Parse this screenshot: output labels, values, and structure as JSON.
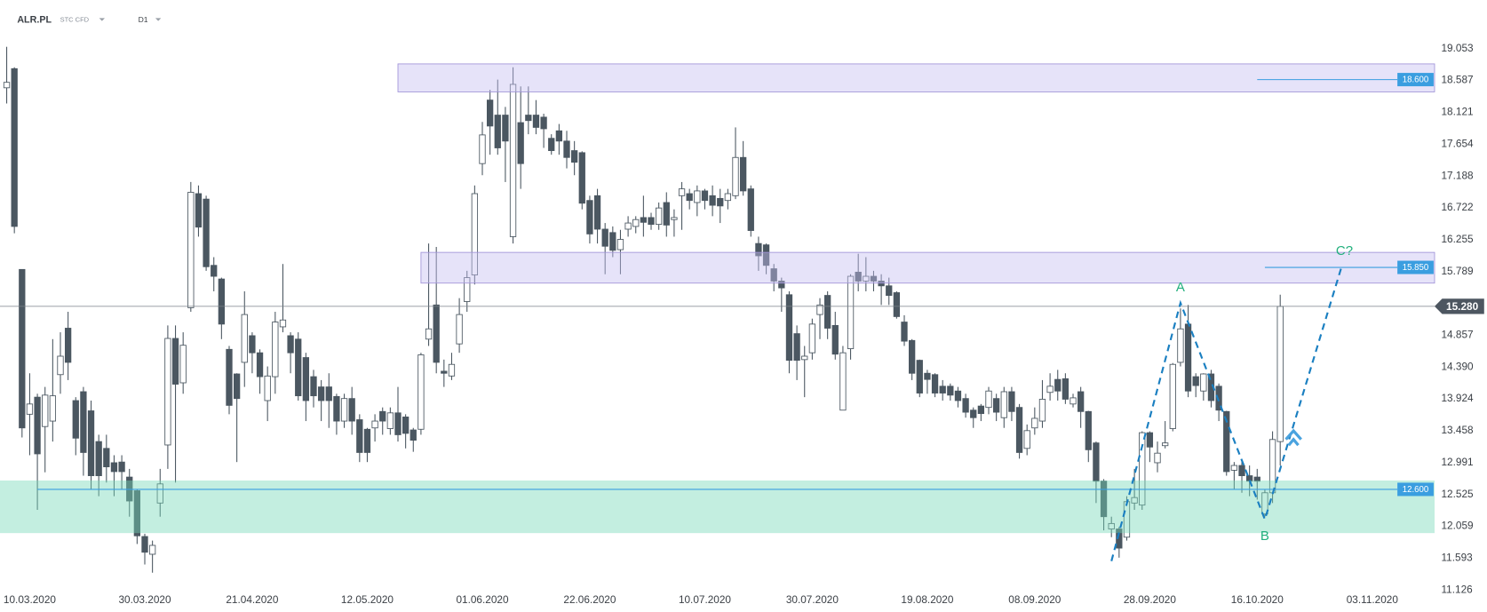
{
  "header": {
    "symbol": "ALR.PL",
    "market": "STC CFD",
    "interval": "D1"
  },
  "chart_data": {
    "type": "candlestick",
    "categories": [
      null,
      null,
      null,
      "10.03.2020",
      null,
      null,
      null,
      null,
      null,
      null,
      null,
      null,
      null,
      null,
      null,
      null,
      null,
      null,
      "30.03.2020",
      null,
      null,
      null,
      null,
      null,
      null,
      null,
      null,
      null,
      null,
      null,
      null,
      null,
      "21.04.2020",
      null,
      null,
      null,
      null,
      null,
      null,
      null,
      null,
      null,
      null,
      null,
      null,
      null,
      null,
      "12.05.2020",
      null,
      null,
      null,
      null,
      null,
      null,
      null,
      null,
      null,
      null,
      null,
      null,
      null,
      null,
      "01.06.2020",
      null,
      null,
      null,
      null,
      null,
      null,
      null,
      null,
      null,
      null,
      null,
      null,
      null,
      "22.06.2020",
      null,
      null,
      null,
      null,
      null,
      null,
      null,
      null,
      null,
      null,
      null,
      null,
      null,
      null,
      "10.07.2020",
      null,
      null,
      null,
      null,
      null,
      null,
      null,
      null,
      null,
      null,
      null,
      null,
      null,
      "30.07.2020",
      null,
      null,
      null,
      null,
      null,
      null,
      null,
      null,
      null,
      null,
      null,
      null,
      null,
      null,
      "19.08.2020",
      null,
      null,
      null,
      null,
      null,
      null,
      null,
      null,
      null,
      null,
      null,
      null,
      null,
      "08.09.2020",
      null,
      null,
      null,
      null,
      null,
      null,
      null,
      null,
      null,
      null,
      null,
      null,
      null,
      null,
      "28.09.2020",
      null,
      null,
      null,
      null,
      null,
      null,
      null,
      null,
      null,
      null,
      null,
      null,
      null,
      "16.10.2020",
      null,
      null,
      null,
      null,
      null,
      null,
      null,
      null,
      null,
      null,
      null,
      null,
      null,
      null,
      "03.11.2020",
      null,
      null,
      null,
      null,
      null,
      null,
      null
    ],
    "open": [
      18.48,
      18.76,
      15.82,
      13.7,
      13.95,
      13.52,
      13.6,
      14.28,
      14.96,
      13.9,
      14.03,
      13.75,
      13.3,
      13.2,
      12.99,
      13.0,
      12.78,
      12.58,
      11.91,
      11.65,
      12.4,
      13.25,
      14.81,
      14.16,
      15.26,
      16.93,
      16.85,
      15.88,
      15.68,
      14.65,
      14.29,
      14.46,
      14.85,
      14.6,
      13.9,
      14.25,
      14.98,
      14.85,
      14.8,
      14.53,
      14.25,
      14.1,
      14.1,
      13.96,
      13.6,
      13.93,
      13.62,
      13.48,
      13.5,
      13.74,
      13.49,
      13.72,
      13.66,
      13.47,
      13.48,
      14.8,
      15.3,
      14.33,
      14.26,
      14.73,
      15.35,
      15.74,
      17.37,
      18.3,
      18.08,
      18.08,
      16.3,
      17.97,
      18.08,
      18.08,
      18.05,
      17.74,
      17.85,
      17.7,
      17.56,
      17.53,
      16.83,
      16.9,
      16.41,
      16.36,
      16.11,
      16.41,
      16.45,
      16.58,
      16.58,
      16.48,
      16.8,
      16.55,
      16.9,
      16.93,
      16.8,
      16.97,
      16.9,
      16.86,
      16.83,
      16.9,
      17.46,
      17.0,
      16.2,
      16.18,
      15.83,
      15.65,
      15.45,
      14.88,
      14.5,
      14.6,
      15.16,
      15.44,
      15.0,
      13.76,
      14.66,
      15.78,
      15.65,
      15.72,
      15.65,
      15.58,
      15.48,
      15.05,
      14.78,
      14.49,
      14.3,
      14.28,
      14.11,
      14.11,
      14.04,
      13.93,
      13.76,
      13.82,
      13.8,
      13.93,
      13.65,
      14.03,
      13.8,
      13.2,
      13.5,
      13.6,
      14.02,
      14.21,
      14.22,
      13.85,
      14.03,
      13.74,
      13.28,
      12.72,
      12.02,
      12.02,
      11.9,
      12.4,
      12.37,
      13.43,
      12.99,
      13.24,
      13.49,
      14.46,
      15.02,
      14.25,
      14.04,
      14.29,
      14.11,
      13.74,
      12.88,
      12.95,
      12.8,
      12.78,
      12.24,
      12.55,
      13.3,
      null,
      null,
      null,
      null,
      null,
      null,
      null,
      null,
      null,
      null,
      null,
      null,
      null,
      null,
      null,
      null,
      null,
      null,
      null
    ],
    "high": [
      19.08,
      18.78,
      15.82,
      14.3,
      14.0,
      14.1,
      14.8,
      14.9,
      15.2,
      13.95,
      14.1,
      13.9,
      13.4,
      13.4,
      13.1,
      13.1,
      12.9,
      12.6,
      11.95,
      11.85,
      12.9,
      15.0,
      15.0,
      14.9,
      17.1,
      17.05,
      16.9,
      16.0,
      15.7,
      14.7,
      14.3,
      15.5,
      14.9,
      14.65,
      14.4,
      15.2,
      15.9,
      14.9,
      14.9,
      14.6,
      14.35,
      14.2,
      14.3,
      14.0,
      14.0,
      14.1,
      13.7,
      13.5,
      13.7,
      13.8,
      13.8,
      14.1,
      13.7,
      13.5,
      14.6,
      16.2,
      16.15,
      14.5,
      14.6,
      15.4,
      15.8,
      17.05,
      17.98,
      18.45,
      18.6,
      18.2,
      18.78,
      18.5,
      18.5,
      18.3,
      18.1,
      17.8,
      17.95,
      17.85,
      17.7,
      17.55,
      16.9,
      17.0,
      16.5,
      16.45,
      16.4,
      16.6,
      16.6,
      16.9,
      16.65,
      16.8,
      16.95,
      16.7,
      17.1,
      17.0,
      17.05,
      17.0,
      17.05,
      17.0,
      17.0,
      17.9,
      17.7,
      17.05,
      16.3,
      16.2,
      15.9,
      15.7,
      15.5,
      15.0,
      14.7,
      15.1,
      15.4,
      15.5,
      15.2,
      14.7,
      15.75,
      16.05,
      16.0,
      15.8,
      15.75,
      15.7,
      15.5,
      15.15,
      14.8,
      14.5,
      14.35,
      14.3,
      14.2,
      14.15,
      14.1,
      14.0,
      13.8,
      13.85,
      14.1,
      14.0,
      14.1,
      14.1,
      13.85,
      13.55,
      13.8,
      14.2,
      14.3,
      14.35,
      14.3,
      14.0,
      14.1,
      13.75,
      13.3,
      12.75,
      12.2,
      12.05,
      12.5,
      12.9,
      13.45,
      13.45,
      13.3,
      13.6,
      14.45,
      15.25,
      15.3,
      14.3,
      14.3,
      14.35,
      14.15,
      13.75,
      13.0,
      13.0,
      12.95,
      12.9,
      12.6,
      13.45,
      15.45,
      null,
      null,
      null,
      null,
      null,
      null,
      null,
      null,
      null,
      null,
      null,
      null,
      null,
      null,
      null,
      null,
      null,
      null,
      null
    ],
    "low": [
      18.25,
      16.35,
      13.36,
      13.1,
      12.3,
      12.85,
      13.3,
      14.0,
      14.2,
      13.1,
      12.8,
      12.6,
      12.5,
      12.7,
      12.5,
      12.6,
      12.2,
      11.8,
      11.5,
      11.38,
      12.2,
      12.9,
      12.7,
      14.0,
      15.2,
      16.3,
      15.8,
      15.5,
      14.8,
      13.7,
      13.0,
      14.1,
      14.3,
      14.0,
      13.6,
      14.0,
      14.9,
      14.3,
      13.9,
      13.6,
      13.8,
      13.6,
      13.5,
      13.4,
      13.5,
      13.4,
      13.0,
      13.0,
      13.3,
      13.4,
      13.4,
      13.3,
      13.2,
      13.15,
      13.4,
      14.7,
      14.3,
      14.1,
      14.2,
      14.6,
      15.2,
      15.6,
      17.2,
      17.5,
      17.5,
      17.1,
      16.2,
      17.0,
      17.8,
      17.8,
      17.6,
      17.5,
      17.5,
      17.3,
      17.2,
      16.7,
      16.2,
      16.2,
      15.75,
      16.0,
      15.75,
      16.3,
      16.35,
      16.3,
      16.4,
      16.4,
      16.3,
      16.3,
      16.4,
      16.7,
      16.6,
      16.7,
      16.6,
      16.5,
      16.7,
      16.85,
      16.9,
      16.3,
      15.8,
      15.75,
      15.5,
      15.2,
      14.3,
      14.2,
      13.95,
      14.5,
      14.8,
      14.8,
      14.5,
      13.76,
      14.5,
      15.5,
      15.5,
      15.5,
      15.3,
      15.3,
      15.1,
      14.7,
      14.2,
      13.95,
      14.0,
      13.95,
      13.9,
      13.9,
      13.8,
      13.65,
      13.5,
      13.6,
      13.7,
      13.6,
      13.5,
      13.6,
      13.05,
      13.1,
      13.4,
      13.5,
      13.9,
      13.9,
      13.85,
      13.8,
      13.5,
      13.0,
      12.4,
      12.0,
      11.9,
      11.6,
      11.85,
      12.3,
      12.3,
      13.0,
      12.85,
      13.2,
      13.45,
      14.4,
      13.95,
      13.95,
      13.9,
      13.8,
      13.6,
      12.8,
      12.6,
      12.55,
      12.5,
      12.45,
      12.2,
      12.4,
      12.95,
      null,
      null,
      null,
      null,
      null,
      null,
      null,
      null,
      null,
      null,
      null,
      null,
      null,
      null,
      null,
      null,
      null,
      null,
      null
    ],
    "close": [
      18.56,
      16.45,
      13.5,
      13.85,
      13.12,
      13.98,
      13.97,
      14.55,
      14.46,
      13.35,
      13.14,
      12.8,
      12.8,
      12.93,
      12.86,
      12.86,
      12.43,
      11.92,
      11.68,
      11.78,
      12.68,
      14.81,
      14.14,
      14.71,
      16.95,
      16.44,
      15.86,
      15.72,
      15.02,
      13.83,
      13.93,
      15.16,
      14.6,
      14.25,
      14.26,
      15.05,
      15.08,
      14.6,
      13.97,
      13.9,
      13.97,
      13.9,
      13.9,
      13.6,
      13.93,
      13.6,
      13.14,
      13.14,
      13.6,
      13.6,
      13.72,
      13.4,
      13.42,
      13.32,
      14.57,
      14.95,
      14.46,
      14.3,
      14.43,
      15.16,
      15.7,
      16.93,
      17.79,
      17.92,
      17.6,
      17.7,
      18.53,
      17.37,
      18.0,
      17.9,
      17.88,
      17.56,
      17.7,
      17.46,
      17.39,
      16.79,
      16.34,
      16.41,
      16.16,
      16.1,
      16.26,
      16.5,
      16.55,
      16.51,
      16.48,
      16.72,
      16.47,
      16.58,
      17.0,
      16.83,
      16.97,
      16.83,
      16.76,
      16.75,
      16.93,
      17.46,
      16.97,
      16.39,
      16.02,
      15.88,
      15.65,
      15.55,
      14.49,
      14.49,
      14.55,
      15.02,
      15.3,
      14.96,
      14.58,
      14.6,
      15.72,
      15.65,
      15.72,
      15.65,
      15.58,
      15.44,
      15.13,
      14.77,
      14.3,
      14.01,
      14.21,
      14.01,
      14.01,
      13.98,
      13.9,
      13.73,
      13.65,
      13.71,
      14.04,
      13.73,
      14.03,
      13.74,
      13.14,
      13.46,
      13.64,
      13.92,
      14.11,
      14.04,
      13.92,
      13.94,
      13.74,
      13.18,
      12.72,
      12.2,
      12.1,
      11.74,
      12.42,
      12.48,
      13.43,
      13.22,
      13.13,
      13.28,
      14.43,
      14.95,
      14.04,
      14.12,
      14.29,
      13.9,
      13.76,
      12.86,
      12.95,
      12.8,
      12.72,
      12.72,
      12.55,
      13.33,
      15.28,
      null,
      null,
      null,
      null,
      null,
      null,
      null,
      null,
      null,
      null,
      null,
      null,
      null,
      null,
      null,
      null,
      null,
      null,
      null
    ],
    "up_color": "#ffffff",
    "down_color": "#4b5761",
    "ylim": [
      11.126,
      19.053
    ],
    "yticks": [
      19.053,
      18.587,
      18.121,
      17.654,
      17.188,
      16.722,
      16.255,
      15.789,
      14.857,
      {
        "value": 14.39,
        "label": "14.390"
      },
      13.924,
      13.458,
      12.991,
      12.525,
      12.059,
      11.593,
      11.126
    ],
    "zones": [
      {
        "ylim": [
          18.42,
          18.83
        ],
        "x_from": 51,
        "color": "#c6bdf0"
      },
      {
        "ylim": [
          15.62,
          16.07
        ],
        "x_from": 54,
        "color": "#c6bdf0"
      },
      {
        "ylim": [
          11.96,
          12.73
        ],
        "x_from": 0,
        "color": "#74d8b7"
      }
    ],
    "levels": [
      {
        "value": 18.6,
        "label": "18.600",
        "x_from": 163
      },
      {
        "value": 15.85,
        "label": "15.850",
        "x_from": 164
      },
      {
        "value": 12.6,
        "label": "12.600",
        "x_from": 4
      }
    ],
    "level_color": "#3a9ee0",
    "last_price": {
      "value": 15.28,
      "label": "15.280"
    },
    "pattern": {
      "color": "#1a7fc1",
      "label_color": "#22b07d",
      "points": [
        {
          "x": 144,
          "y": 11.55
        },
        {
          "x": 153,
          "y": 15.33,
          "label": "A"
        },
        {
          "x": 164,
          "y": 12.16,
          "label": "B"
        },
        {
          "x": 174,
          "y": 15.86,
          "label": "C?"
        }
      ]
    }
  }
}
